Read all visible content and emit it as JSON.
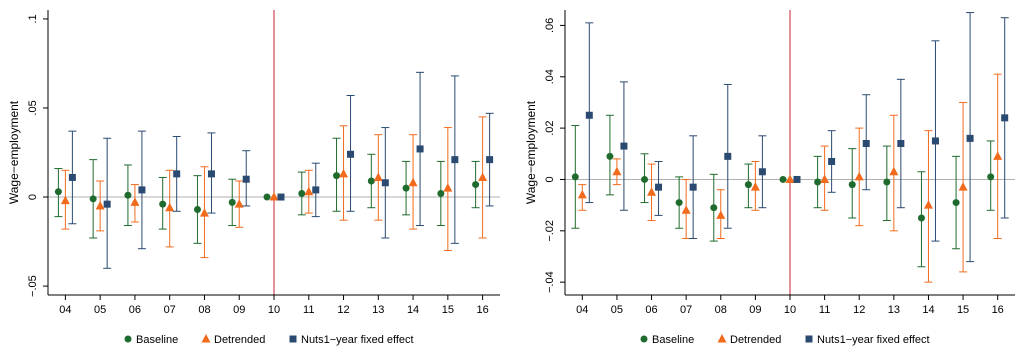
{
  "colors": {
    "baseline": "#1f6b2e",
    "detrended": "#f26b1d",
    "nuts1": "#2b4a72",
    "refline": "#cc2233",
    "zeroline": "#b0b0b0",
    "axis": "#000000"
  },
  "legend": {
    "placement": "bottom",
    "entries": [
      "Baseline",
      "Detrended",
      "Nuts1−year fixed effect"
    ]
  },
  "chart_data": [
    {
      "type": "scatter",
      "subtype": "coefficient-plot-with-ci",
      "ylabel": "Wage−employment",
      "xlabel": "",
      "categories": [
        "04",
        "05",
        "06",
        "07",
        "08",
        "09",
        "10",
        "11",
        "12",
        "13",
        "14",
        "15",
        "16"
      ],
      "ylim": [
        -0.055,
        0.105
      ],
      "yticks": [
        -0.05,
        0,
        0.05,
        0.1
      ],
      "ytick_labels": [
        "−.05",
        "0",
        ".05",
        ".1"
      ],
      "reference_x": "10",
      "grid": false,
      "series": [
        {
          "name": "Baseline",
          "values": [
            0.003,
            -0.001,
            0.001,
            -0.004,
            -0.007,
            -0.003,
            0.0,
            0.002,
            0.012,
            0.009,
            0.005,
            0.002,
            0.007
          ],
          "lower": [
            -0.011,
            -0.023,
            -0.016,
            -0.018,
            -0.026,
            -0.016,
            0.0,
            -0.01,
            -0.008,
            -0.006,
            -0.01,
            -0.016,
            -0.006
          ],
          "upper": [
            0.016,
            0.021,
            0.018,
            0.011,
            0.012,
            0.01,
            0.0,
            0.014,
            0.033,
            0.024,
            0.02,
            0.02,
            0.02
          ]
        },
        {
          "name": "Detrended",
          "values": [
            -0.002,
            -0.005,
            -0.003,
            -0.006,
            -0.009,
            -0.004,
            0.0,
            0.003,
            0.013,
            0.011,
            0.008,
            0.005,
            0.011
          ],
          "lower": [
            -0.018,
            -0.019,
            -0.014,
            -0.028,
            -0.034,
            -0.017,
            0.0,
            -0.009,
            -0.013,
            -0.013,
            -0.018,
            -0.03,
            -0.023
          ],
          "upper": [
            0.015,
            0.009,
            0.007,
            0.015,
            0.017,
            0.009,
            0.0,
            0.015,
            0.04,
            0.035,
            0.035,
            0.039,
            0.045
          ]
        },
        {
          "name": "Nuts1−year fixed effect",
          "values": [
            0.011,
            -0.004,
            0.004,
            0.013,
            0.013,
            0.01,
            0.0,
            0.004,
            0.024,
            0.008,
            0.027,
            0.021,
            0.021
          ],
          "lower": [
            -0.015,
            -0.04,
            -0.029,
            -0.008,
            -0.009,
            -0.005,
            0.0,
            -0.011,
            -0.008,
            -0.023,
            -0.016,
            -0.026,
            -0.005
          ],
          "upper": [
            0.037,
            0.033,
            0.037,
            0.034,
            0.036,
            0.026,
            0.0,
            0.019,
            0.057,
            0.039,
            0.07,
            0.068,
            0.047
          ]
        }
      ]
    },
    {
      "type": "scatter",
      "subtype": "coefficient-plot-with-ci",
      "ylabel": "Wage−employment",
      "xlabel": "",
      "categories": [
        "04",
        "05",
        "06",
        "07",
        "08",
        "09",
        "10",
        "11",
        "12",
        "13",
        "14",
        "15",
        "16"
      ],
      "ylim": [
        -0.045,
        0.066
      ],
      "yticks": [
        -0.04,
        -0.02,
        0,
        0.02,
        0.04,
        0.06
      ],
      "ytick_labels": [
        "−.04",
        "−.02",
        "0",
        ".02",
        ".04",
        ".06"
      ],
      "reference_x": "10",
      "grid": false,
      "series": [
        {
          "name": "Baseline",
          "values": [
            0.001,
            0.009,
            0.0,
            -0.009,
            -0.011,
            -0.002,
            0.0,
            -0.001,
            -0.002,
            -0.001,
            -0.015,
            -0.009,
            0.001
          ],
          "lower": [
            -0.019,
            -0.006,
            -0.009,
            -0.019,
            -0.024,
            -0.011,
            0.0,
            -0.011,
            -0.015,
            -0.016,
            -0.034,
            -0.027,
            -0.012
          ],
          "upper": [
            0.021,
            0.025,
            0.01,
            0.001,
            0.002,
            0.006,
            0.0,
            0.009,
            0.012,
            0.013,
            0.003,
            0.009,
            0.015
          ]
        },
        {
          "name": "Detrended",
          "values": [
            -0.006,
            0.003,
            -0.005,
            -0.012,
            -0.014,
            -0.003,
            0.0,
            0.0,
            0.001,
            0.003,
            -0.01,
            -0.003,
            0.009
          ],
          "lower": [
            -0.012,
            -0.002,
            -0.016,
            -0.023,
            -0.023,
            -0.012,
            0.0,
            -0.012,
            -0.018,
            -0.02,
            -0.04,
            -0.036,
            -0.023
          ],
          "upper": [
            -0.002,
            0.008,
            0.006,
            0.0,
            -0.004,
            0.007,
            0.0,
            0.013,
            0.02,
            0.025,
            0.019,
            0.03,
            0.041
          ]
        },
        {
          "name": "Nuts1−year fixed effect",
          "values": [
            0.025,
            0.013,
            -0.003,
            -0.003,
            0.009,
            0.003,
            0.0,
            0.007,
            0.014,
            0.014,
            0.015,
            0.016,
            0.024
          ],
          "lower": [
            -0.009,
            -0.012,
            -0.014,
            -0.023,
            -0.019,
            -0.011,
            0.0,
            -0.005,
            -0.004,
            -0.011,
            -0.024,
            -0.032,
            -0.015
          ],
          "upper": [
            0.061,
            0.038,
            0.007,
            0.017,
            0.037,
            0.017,
            0.0,
            0.019,
            0.033,
            0.039,
            0.054,
            0.065,
            0.063
          ]
        }
      ]
    }
  ]
}
